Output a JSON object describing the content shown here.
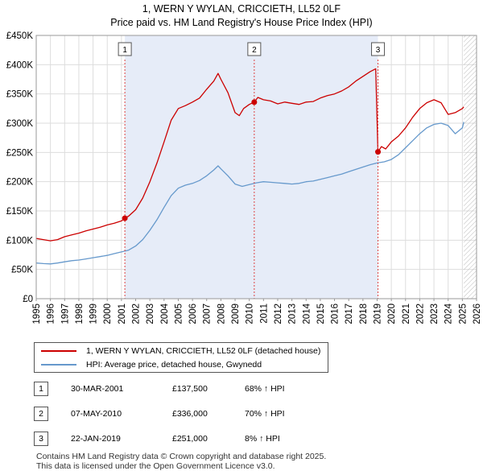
{
  "chart_data": {
    "type": "line",
    "title": "1, WERN Y WYLAN, CRICCIETH, LL52 0LF",
    "subtitle": "Price paid vs. HM Land Registry's House Price Index (HPI)",
    "xlabel": "",
    "ylabel": "",
    "xlim": [
      1995,
      2026
    ],
    "ylim": [
      0,
      450000
    ],
    "x_ticks": [
      "1995",
      "1996",
      "1997",
      "1998",
      "1999",
      "2000",
      "2001",
      "2002",
      "2003",
      "2004",
      "2005",
      "2006",
      "2007",
      "2008",
      "2009",
      "2010",
      "2011",
      "2012",
      "2013",
      "2014",
      "2015",
      "2016",
      "2017",
      "2018",
      "2019",
      "2020",
      "2021",
      "2022",
      "2023",
      "2024",
      "2025",
      "2026"
    ],
    "y_ticks": [
      {
        "value": 0,
        "label": "£0"
      },
      {
        "value": 50000,
        "label": "£50K"
      },
      {
        "value": 100000,
        "label": "£100K"
      },
      {
        "value": 150000,
        "label": "£150K"
      },
      {
        "value": 200000,
        "label": "£200K"
      },
      {
        "value": 250000,
        "label": "£250K"
      },
      {
        "value": 300000,
        "label": "£300K"
      },
      {
        "value": 350000,
        "label": "£350K"
      },
      {
        "value": 400000,
        "label": "£400K"
      },
      {
        "value": 450000,
        "label": "£450K"
      }
    ],
    "grid": true,
    "forecast_from": 2025.1,
    "series": [
      {
        "name": "1, WERN Y WYLAN, CRICCIETH, LL52 0LF (detached house)",
        "color": "#cc0000",
        "x": [
          1995.0,
          1995.5,
          1996.0,
          1996.5,
          1997.0,
          1997.5,
          1998.0,
          1998.5,
          1999.0,
          1999.5,
          2000.0,
          2000.5,
          2001.0,
          2001.24,
          2001.5,
          2002.0,
          2002.5,
          2003.0,
          2003.5,
          2004.0,
          2004.5,
          2005.0,
          2005.5,
          2006.0,
          2006.5,
          2007.0,
          2007.5,
          2007.8,
          2008.0,
          2008.5,
          2009.0,
          2009.3,
          2009.6,
          2010.0,
          2010.35,
          2010.6,
          2011.0,
          2011.5,
          2012.0,
          2012.5,
          2013.0,
          2013.5,
          2014.0,
          2014.5,
          2015.0,
          2015.5,
          2016.0,
          2016.5,
          2017.0,
          2017.5,
          2018.0,
          2018.5,
          2018.9,
          2019.06,
          2019.3,
          2019.6,
          2020.0,
          2020.5,
          2021.0,
          2021.5,
          2022.0,
          2022.5,
          2023.0,
          2023.5,
          2024.0,
          2024.5,
          2025.0,
          2025.1
        ],
        "values": [
          103000,
          101000,
          99000,
          101000,
          106000,
          109000,
          112000,
          116000,
          119000,
          122000,
          126000,
          129000,
          133000,
          137500,
          141000,
          152000,
          172000,
          200000,
          232000,
          268000,
          305000,
          325000,
          330000,
          336000,
          343000,
          358000,
          372000,
          385000,
          375000,
          352000,
          318000,
          313000,
          325000,
          332000,
          336000,
          344000,
          340000,
          338000,
          333000,
          336000,
          334000,
          332000,
          336000,
          337000,
          343000,
          347000,
          350000,
          355000,
          362000,
          372000,
          380000,
          388000,
          393000,
          251000,
          260000,
          256000,
          268000,
          278000,
          292000,
          310000,
          325000,
          335000,
          340000,
          335000,
          315000,
          318000,
          325000,
          328000
        ]
      },
      {
        "name": "HPI: Average price, detached house, Gwynedd",
        "color": "#6699cc",
        "x": [
          1995.0,
          1995.5,
          1996.0,
          1996.5,
          1997.0,
          1997.5,
          1998.0,
          1998.5,
          1999.0,
          1999.5,
          2000.0,
          2000.5,
          2001.0,
          2001.5,
          2002.0,
          2002.5,
          2003.0,
          2003.5,
          2004.0,
          2004.5,
          2005.0,
          2005.5,
          2006.0,
          2006.5,
          2007.0,
          2007.5,
          2007.8,
          2008.0,
          2008.5,
          2009.0,
          2009.5,
          2010.0,
          2010.5,
          2011.0,
          2011.5,
          2012.0,
          2012.5,
          2013.0,
          2013.5,
          2014.0,
          2014.5,
          2015.0,
          2015.5,
          2016.0,
          2016.5,
          2017.0,
          2017.5,
          2018.0,
          2018.5,
          2019.0,
          2019.5,
          2020.0,
          2020.5,
          2021.0,
          2021.5,
          2022.0,
          2022.5,
          2023.0,
          2023.5,
          2024.0,
          2024.5,
          2025.0,
          2025.1
        ],
        "values": [
          61000,
          60000,
          59500,
          61000,
          63000,
          65000,
          66000,
          68000,
          70000,
          72000,
          74000,
          77000,
          80000,
          83000,
          90000,
          101000,
          117000,
          135000,
          156000,
          176000,
          189000,
          194000,
          197000,
          202000,
          210000,
          220000,
          227000,
          222000,
          210000,
          196000,
          192000,
          195000,
          198000,
          200000,
          199000,
          198000,
          197000,
          196000,
          197000,
          200000,
          201000,
          204000,
          207000,
          210000,
          213000,
          217000,
          221000,
          225000,
          229000,
          232000,
          234000,
          238000,
          246000,
          258000,
          270000,
          282000,
          292000,
          298000,
          300000,
          296000,
          282000,
          292000,
          302000
        ]
      }
    ],
    "sale_markers": [
      {
        "label": "1",
        "x": 2001.24,
        "value": 137500
      },
      {
        "label": "2",
        "x": 2010.35,
        "value": 336000
      },
      {
        "label": "3",
        "x": 2019.06,
        "value": 251000
      }
    ]
  },
  "legend": {
    "items": [
      {
        "label": "1, WERN Y WYLAN, CRICCIETH, LL52 0LF (detached house)",
        "color": "#cc0000"
      },
      {
        "label": "HPI: Average price, detached house, Gwynedd",
        "color": "#6699cc"
      }
    ]
  },
  "sales": [
    {
      "num": "1",
      "date": "30-MAR-2001",
      "price": "£137,500",
      "hpi": "68% ↑ HPI"
    },
    {
      "num": "2",
      "date": "07-MAY-2010",
      "price": "£336,000",
      "hpi": "70% ↑ HPI"
    },
    {
      "num": "3",
      "date": "22-JAN-2019",
      "price": "£251,000",
      "hpi": "8% ↑ HPI"
    }
  ],
  "footer": {
    "line1": "Contains HM Land Registry data © Crown copyright and database right 2025.",
    "line2": "This data is licensed under the Open Government Licence v3.0."
  }
}
